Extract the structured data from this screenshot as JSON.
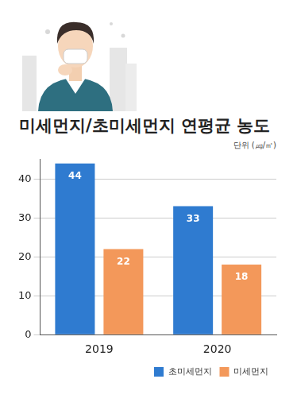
{
  "chart_data": {
    "type": "bar",
    "title": "미세먼지/초미세먼지 연평균 농도",
    "subtitle": "단위 (㎍/㎥)",
    "categories": [
      "2019",
      "2020"
    ],
    "series": [
      {
        "name": "초미세먼지",
        "color": "#2f7bd0",
        "values": [
          44,
          33
        ]
      },
      {
        "name": "미세먼지",
        "color": "#f3985a",
        "values": [
          22,
          18
        ]
      }
    ],
    "ylim": [
      0,
      45
    ],
    "yticks": [
      0,
      10,
      20,
      30,
      40
    ],
    "grid": true,
    "data_labels": true,
    "legend": "lower right"
  }
}
